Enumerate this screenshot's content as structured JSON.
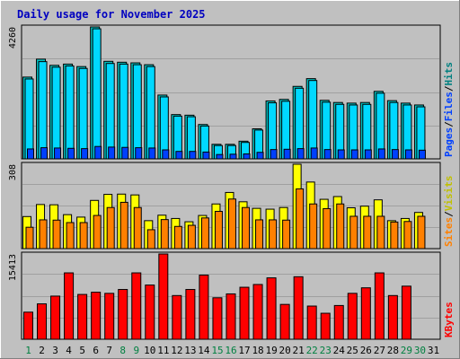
{
  "title": "Daily usage for November 2025",
  "colors": {
    "background": "#c0c0c0",
    "frame_light": "#ffffff",
    "frame_dark": "#808080",
    "plot_border": "#000000",
    "gridline": "#a0a0a0",
    "title": "#0000c0",
    "hits": "#00c0c0",
    "files": "#00d8ff",
    "pages": "#0040ff",
    "visits": "#ffff00",
    "sites": "#ff8000",
    "kbytes": "#ff0000",
    "weekday_label": "#000000",
    "weekend_label": "#008040"
  },
  "chart_data": [
    {
      "type": "bar",
      "name": "hits-files-pages",
      "max_label": "4260",
      "ylim": [
        0,
        4260
      ],
      "grid": true,
      "legend": "right-vertical",
      "legend_items": [
        {
          "name": "Pages",
          "color": "#0040ff"
        },
        {
          "name": "/",
          "color": "#000000"
        },
        {
          "name": "Files",
          "color": "#0040ff"
        },
        {
          "name": "/",
          "color": "#000000"
        },
        {
          "name": "Hits",
          "color": "#008080"
        }
      ],
      "categories": [
        "1",
        "2",
        "3",
        "4",
        "5",
        "6",
        "7",
        "8",
        "9",
        "10",
        "11",
        "12",
        "13",
        "14",
        "15",
        "16",
        "17",
        "18",
        "19",
        "20",
        "21",
        "22",
        "23",
        "24",
        "25",
        "26",
        "27",
        "28",
        "29",
        "30",
        "31"
      ],
      "series": [
        {
          "name": "Hits",
          "values": [
            2640,
            3220,
            3020,
            3060,
            2980,
            4260,
            3150,
            3120,
            3100,
            3040,
            2060,
            1430,
            1410,
            1110,
            470,
            470,
            570,
            970,
            1870,
            1920,
            2340,
            2590,
            1890,
            1820,
            1800,
            1820,
            2180,
            1880,
            1800,
            1740,
            0
          ]
        },
        {
          "name": "Files",
          "values": [
            2580,
            3140,
            2960,
            3000,
            2920,
            4200,
            3080,
            3060,
            3040,
            2980,
            2000,
            1380,
            1360,
            1060,
            430,
            430,
            530,
            930,
            1810,
            1860,
            2280,
            2530,
            1830,
            1760,
            1740,
            1760,
            2120,
            1820,
            1740,
            1680,
            0
          ]
        },
        {
          "name": "Pages",
          "values": [
            320,
            360,
            350,
            340,
            330,
            400,
            380,
            370,
            360,
            350,
            290,
            240,
            240,
            220,
            140,
            150,
            160,
            210,
            300,
            310,
            330,
            350,
            300,
            290,
            290,
            290,
            320,
            300,
            290,
            280,
            0
          ]
        }
      ]
    },
    {
      "type": "bar",
      "name": "visits-sites",
      "max_label": "308",
      "ylim": [
        0,
        308
      ],
      "grid": true,
      "legend": "right-vertical",
      "legend_items": [
        {
          "name": "Sites",
          "color": "#ff8000"
        },
        {
          "name": "/",
          "color": "#000000"
        },
        {
          "name": "Visits",
          "color": "#c0c000"
        }
      ],
      "categories": [
        "1",
        "2",
        "3",
        "4",
        "5",
        "6",
        "7",
        "8",
        "9",
        "10",
        "11",
        "12",
        "13",
        "14",
        "15",
        "16",
        "17",
        "18",
        "19",
        "20",
        "21",
        "22",
        "23",
        "24",
        "25",
        "26",
        "27",
        "28",
        "29",
        "30",
        "31"
      ],
      "series": [
        {
          "name": "Visits",
          "values": [
            117,
            161,
            160,
            124,
            115,
            176,
            198,
            199,
            196,
            102,
            122,
            110,
            98,
            121,
            163,
            205,
            171,
            147,
            144,
            150,
            308,
            243,
            180,
            190,
            149,
            155,
            178,
            102,
            110,
            132,
            0
          ]
        },
        {
          "name": "Sites",
          "values": [
            78,
            105,
            104,
            95,
            95,
            121,
            150,
            169,
            150,
            69,
            106,
            81,
            85,
            112,
            136,
            181,
            150,
            105,
            105,
            104,
            218,
            163,
            146,
            163,
            118,
            118,
            118,
            97,
            99,
            118,
            0
          ]
        }
      ]
    },
    {
      "type": "bar",
      "name": "kbytes",
      "max_label": "15413",
      "ylim": [
        0,
        15413
      ],
      "grid": true,
      "legend": "right-vertical",
      "legend_items": [
        {
          "name": "KBytes",
          "color": "#ff0000"
        }
      ],
      "categories": [
        "1",
        "2",
        "3",
        "4",
        "5",
        "6",
        "7",
        "8",
        "9",
        "10",
        "11",
        "12",
        "13",
        "14",
        "15",
        "16",
        "17",
        "18",
        "19",
        "20",
        "21",
        "22",
        "23",
        "24",
        "25",
        "26",
        "27",
        "28",
        "29",
        "30",
        "31"
      ],
      "series": [
        {
          "name": "KBytes",
          "values": [
            4900,
            6400,
            7800,
            12000,
            8100,
            8500,
            8300,
            9000,
            12000,
            9800,
            15413,
            7900,
            9000,
            11600,
            7500,
            8200,
            9400,
            9900,
            11100,
            6300,
            11300,
            6000,
            4700,
            6100,
            8300,
            9300,
            12000,
            7900,
            9600,
            0,
            0
          ]
        }
      ]
    }
  ],
  "x_axis": {
    "labels": [
      "1",
      "2",
      "3",
      "4",
      "5",
      "6",
      "7",
      "8",
      "9",
      "10",
      "11",
      "12",
      "13",
      "14",
      "15",
      "16",
      "17",
      "18",
      "19",
      "20",
      "21",
      "22",
      "23",
      "24",
      "25",
      "26",
      "27",
      "28",
      "29",
      "30",
      "31"
    ],
    "weekend": [
      true,
      false,
      false,
      false,
      false,
      false,
      false,
      true,
      true,
      false,
      false,
      false,
      false,
      false,
      true,
      true,
      false,
      false,
      false,
      false,
      false,
      true,
      true,
      false,
      false,
      false,
      false,
      false,
      true,
      true,
      false
    ]
  }
}
